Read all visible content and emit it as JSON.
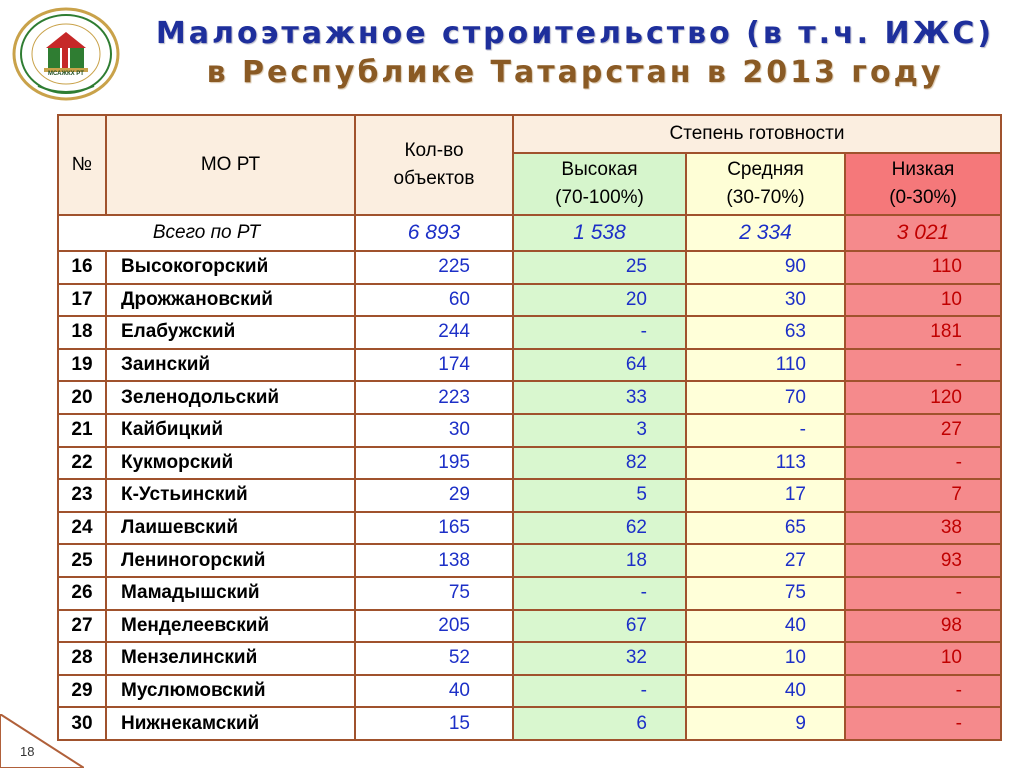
{
  "title": {
    "line1": "Малоэтажное строительство (в т.ч. ИЖС)",
    "line2": "в Республике Татарстан в 2013 году"
  },
  "logo": {
    "text": "МСАЖКХ РТ",
    "colors": {
      "green": "#2f7d32",
      "red": "#c62828",
      "gold": "#c9a24a"
    }
  },
  "table": {
    "headers": {
      "num": "№",
      "mo": "МО РТ",
      "count": "Кол-во объектов",
      "readiness": "Степень готовности",
      "high": "Высокая",
      "high_range": "(70-100%)",
      "medium": "Средняя",
      "medium_range": "(30-70%)",
      "low": "Низкая",
      "low_range": "(0-30%)"
    },
    "total": {
      "label": "Всего по РТ",
      "count": "6 893",
      "high": "1 538",
      "medium": "2 334",
      "low": "3 021"
    },
    "rows": [
      {
        "n": "16",
        "name": "Высокогорский",
        "count": "225",
        "high": "25",
        "medium": "90",
        "low": "110"
      },
      {
        "n": "17",
        "name": "Дрожжановский",
        "count": "60",
        "high": "20",
        "medium": "30",
        "low": "10"
      },
      {
        "n": "18",
        "name": "Елабужский",
        "count": "244",
        "high": "-",
        "medium": "63",
        "low": "181"
      },
      {
        "n": "19",
        "name": "Заинский",
        "count": "174",
        "high": "64",
        "medium": "110",
        "low": "-"
      },
      {
        "n": "20",
        "name": "Зеленодольский",
        "count": "223",
        "high": "33",
        "medium": "70",
        "low": "120"
      },
      {
        "n": "21",
        "name": "Кайбицкий",
        "count": "30",
        "high": "3",
        "medium": "-",
        "low": "27"
      },
      {
        "n": "22",
        "name": "Кукморский",
        "count": "195",
        "high": "82",
        "medium": "113",
        "low": "-"
      },
      {
        "n": "23",
        "name": "К-Устьинский",
        "count": "29",
        "high": "5",
        "medium": "17",
        "low": "7"
      },
      {
        "n": "24",
        "name": "Лаишевский",
        "count": "165",
        "high": "62",
        "medium": "65",
        "low": "38"
      },
      {
        "n": "25",
        "name": "Лениногорский",
        "count": "138",
        "high": "18",
        "medium": "27",
        "low": "93"
      },
      {
        "n": "26",
        "name": "Мамадышский",
        "count": "75",
        "high": "-",
        "medium": "75",
        "low": "-"
      },
      {
        "n": "27",
        "name": "Менделеевский",
        "count": "205",
        "high": "67",
        "medium": "40",
        "low": "98"
      },
      {
        "n": "28",
        "name": "Мензелинский",
        "count": "52",
        "high": "32",
        "medium": "10",
        "low": "10"
      },
      {
        "n": "29",
        "name": "Муслюмовский",
        "count": "40",
        "high": "-",
        "medium": "40",
        "low": "-"
      },
      {
        "n": "30",
        "name": "Нижнекамский",
        "count": "15",
        "high": "6",
        "medium": "9",
        "low": "-"
      }
    ]
  },
  "slide_number": "18",
  "colors": {
    "title_blue": "#1e2f9c",
    "title_brown": "#8a5a24",
    "border": "#a0522d",
    "number_blue": "#1c2fc7",
    "low_red_text": "#c00000",
    "green_cell": "#d9f7cf",
    "yellow_cell": "#ffffd9",
    "red_cell": "#f58a8c"
  }
}
